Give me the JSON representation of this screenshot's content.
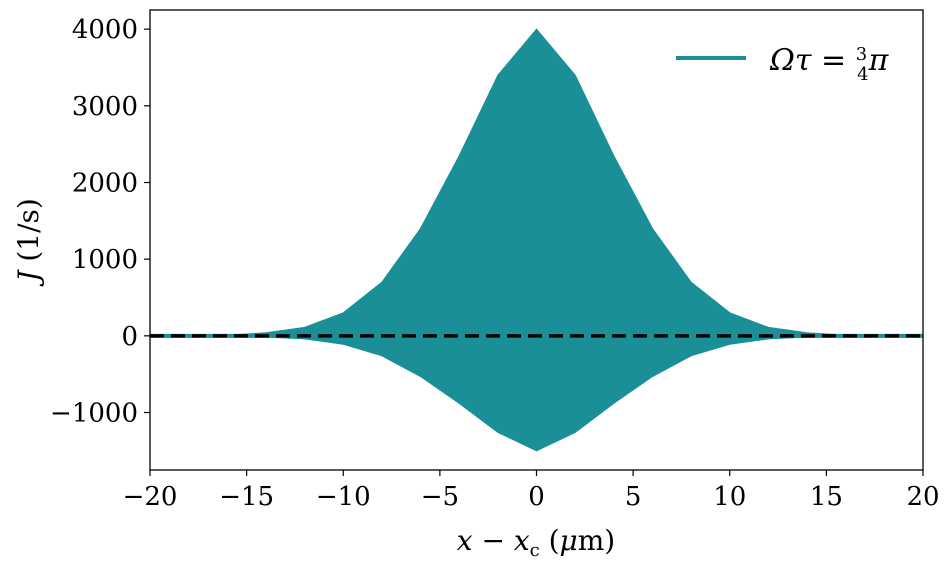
{
  "chart_data": {
    "type": "area",
    "xlabel": "x − x_c (μm)",
    "ylabel": "J (1/s)",
    "xlim": [
      -20,
      20
    ],
    "ylim": [
      -1750,
      4250
    ],
    "x_ticks": [
      -20,
      -15,
      -10,
      -5,
      0,
      5,
      10,
      15,
      20
    ],
    "x_tick_labels": [
      "−20",
      "−15",
      "−10",
      "−5",
      "0",
      "5",
      "10",
      "15",
      "20"
    ],
    "y_ticks": [
      -1000,
      0,
      1000,
      2000,
      3000,
      4000
    ],
    "y_tick_labels": [
      "−1000",
      "0",
      "1000",
      "2000",
      "3000",
      "4000"
    ],
    "grid": false,
    "legend_position": "top-right",
    "series": [
      {
        "name": "Ωτ = 3/4 π",
        "color": "#1b8f98",
        "x": [
          -20,
          -16,
          -14,
          -12,
          -10,
          -8,
          -6,
          -4,
          -2,
          0,
          2,
          4,
          6,
          8,
          10,
          12,
          14,
          16,
          20
        ],
        "upper": [
          0,
          10,
          40,
          110,
          300,
          700,
          1400,
          2350,
          3400,
          4000,
          3400,
          2350,
          1400,
          700,
          300,
          110,
          40,
          10,
          0
        ],
        "lower": [
          0,
          -5,
          -15,
          -40,
          -110,
          -260,
          -530,
          -880,
          -1260,
          -1500,
          -1260,
          -880,
          -530,
          -260,
          -110,
          -40,
          -15,
          -5,
          0
        ]
      }
    ],
    "reference_line": {
      "y": 0,
      "style": "dashed",
      "color": "#000000"
    }
  },
  "legend": {
    "label": "Ωτ = 3/4 π",
    "color": "#1b8f98"
  }
}
